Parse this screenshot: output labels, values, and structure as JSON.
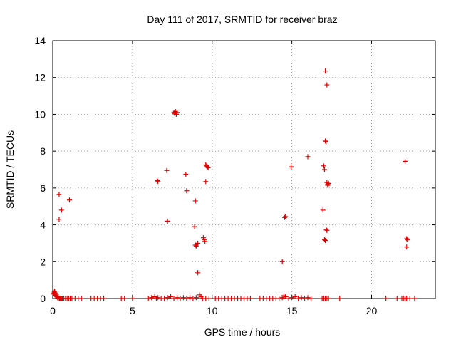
{
  "chart_data": {
    "type": "scatter",
    "title": "Day 111 of 2017, SRMTID for receiver braz",
    "xlabel": "GPS time / hours",
    "ylabel": "SRMTID / TECUs",
    "xlim": [
      0,
      24
    ],
    "ylim": [
      0,
      14
    ],
    "xticks": [
      0,
      5,
      10,
      15,
      20
    ],
    "yticks": [
      0,
      2,
      4,
      6,
      8,
      10,
      12,
      14
    ],
    "grid": true,
    "marker": "+",
    "color": "#e00000",
    "points": [
      [
        0.05,
        0.25
      ],
      [
        0.08,
        0.3
      ],
      [
        0.1,
        0.35
      ],
      [
        0.12,
        0.4
      ],
      [
        0.15,
        0.3
      ],
      [
        0.18,
        0.2
      ],
      [
        0.2,
        0.15
      ],
      [
        0.22,
        0.25
      ],
      [
        0.25,
        0.1
      ],
      [
        0.3,
        0.05
      ],
      [
        0.35,
        0.1
      ],
      [
        0.4,
        0.0
      ],
      [
        0.45,
        0.0
      ],
      [
        0.5,
        0.0
      ],
      [
        0.55,
        0.0
      ],
      [
        0.6,
        0.0
      ],
      [
        0.7,
        0.0
      ],
      [
        0.8,
        0.0
      ],
      [
        0.9,
        0.0
      ],
      [
        1.0,
        0.0
      ],
      [
        1.1,
        0.0
      ],
      [
        1.2,
        0.0
      ],
      [
        1.4,
        0.0
      ],
      [
        1.6,
        0.0
      ],
      [
        1.8,
        0.0
      ],
      [
        2.4,
        0.0
      ],
      [
        2.6,
        0.0
      ],
      [
        2.8,
        0.0
      ],
      [
        3.0,
        0.0
      ],
      [
        3.2,
        0.0
      ],
      [
        4.3,
        0.0
      ],
      [
        4.5,
        0.0
      ],
      [
        5.0,
        0.0
      ],
      [
        0.4,
        5.65
      ],
      [
        0.4,
        4.3
      ],
      [
        0.55,
        4.8
      ],
      [
        1.05,
        5.35
      ],
      [
        6.0,
        0.0
      ],
      [
        6.2,
        0.05
      ],
      [
        6.4,
        0.1
      ],
      [
        6.5,
        0.0
      ],
      [
        6.6,
        0.05
      ],
      [
        6.8,
        0.0
      ],
      [
        7.0,
        0.0
      ],
      [
        7.2,
        0.05
      ],
      [
        7.4,
        0.1
      ],
      [
        7.6,
        0.0
      ],
      [
        7.8,
        0.05
      ],
      [
        8.0,
        0.0
      ],
      [
        8.2,
        0.05
      ],
      [
        8.4,
        0.0
      ],
      [
        8.6,
        0.05
      ],
      [
        8.8,
        0.0
      ],
      [
        9.0,
        0.05
      ],
      [
        9.2,
        0.2
      ],
      [
        9.3,
        0.1
      ],
      [
        9.4,
        0.0
      ],
      [
        9.6,
        0.0
      ],
      [
        9.8,
        0.0
      ],
      [
        6.55,
        6.4
      ],
      [
        6.6,
        6.35
      ],
      [
        7.15,
        6.95
      ],
      [
        7.2,
        4.2
      ],
      [
        7.6,
        10.1
      ],
      [
        7.65,
        10.05
      ],
      [
        7.7,
        10.15
      ],
      [
        7.75,
        10.0
      ],
      [
        7.8,
        10.1
      ],
      [
        8.35,
        6.75
      ],
      [
        8.4,
        5.85
      ],
      [
        8.95,
        5.3
      ],
      [
        8.9,
        3.9
      ],
      [
        8.95,
        2.9
      ],
      [
        9.0,
        2.85
      ],
      [
        9.05,
        2.95
      ],
      [
        9.1,
        3.0
      ],
      [
        9.1,
        1.4
      ],
      [
        9.45,
        3.3
      ],
      [
        9.5,
        3.2
      ],
      [
        9.55,
        3.1
      ],
      [
        9.6,
        7.25
      ],
      [
        9.65,
        7.2
      ],
      [
        9.7,
        7.15
      ],
      [
        9.75,
        7.1
      ],
      [
        9.6,
        6.35
      ],
      [
        10.2,
        0.0
      ],
      [
        10.4,
        0.0
      ],
      [
        10.6,
        0.0
      ],
      [
        10.8,
        0.0
      ],
      [
        11.0,
        0.0
      ],
      [
        11.2,
        0.0
      ],
      [
        11.4,
        0.0
      ],
      [
        11.6,
        0.0
      ],
      [
        11.8,
        0.0
      ],
      [
        12.0,
        0.0
      ],
      [
        12.2,
        0.0
      ],
      [
        12.4,
        0.0
      ],
      [
        13.0,
        0.0
      ],
      [
        13.2,
        0.0
      ],
      [
        13.4,
        0.0
      ],
      [
        13.6,
        0.0
      ],
      [
        13.8,
        0.0
      ],
      [
        14.0,
        0.0
      ],
      [
        14.2,
        0.0
      ],
      [
        14.4,
        0.05
      ],
      [
        14.5,
        0.15
      ],
      [
        14.6,
        0.1
      ],
      [
        14.8,
        0.0
      ],
      [
        15.0,
        0.05
      ],
      [
        15.2,
        0.1
      ],
      [
        15.4,
        0.0
      ],
      [
        15.6,
        0.05
      ],
      [
        15.8,
        0.0
      ],
      [
        16.0,
        0.05
      ],
      [
        16.2,
        0.0
      ],
      [
        14.4,
        2.0
      ],
      [
        14.55,
        4.4
      ],
      [
        14.6,
        4.45
      ],
      [
        14.95,
        7.15
      ],
      [
        16.0,
        7.7
      ],
      [
        16.9,
        0.0
      ],
      [
        17.0,
        0.0
      ],
      [
        17.1,
        0.0
      ],
      [
        17.2,
        0.0
      ],
      [
        17.3,
        0.0
      ],
      [
        16.95,
        4.8
      ],
      [
        17.0,
        7.2
      ],
      [
        17.05,
        7.0
      ],
      [
        17.05,
        3.2
      ],
      [
        17.1,
        3.15
      ],
      [
        17.1,
        12.35
      ],
      [
        17.2,
        11.6
      ],
      [
        17.1,
        8.55
      ],
      [
        17.15,
        8.5
      ],
      [
        17.15,
        3.75
      ],
      [
        17.2,
        3.7
      ],
      [
        17.2,
        6.3
      ],
      [
        17.25,
        6.2
      ],
      [
        17.3,
        6.25
      ],
      [
        17.25,
        6.15
      ],
      [
        18.0,
        0.0
      ],
      [
        20.9,
        0.0
      ],
      [
        21.6,
        0.0
      ],
      [
        21.9,
        0.0
      ],
      [
        22.0,
        0.0
      ],
      [
        22.1,
        0.0
      ],
      [
        22.2,
        0.0
      ],
      [
        22.4,
        0.0
      ],
      [
        22.7,
        0.0
      ],
      [
        22.1,
        7.45
      ],
      [
        22.2,
        3.25
      ],
      [
        22.25,
        3.2
      ],
      [
        22.2,
        2.8
      ]
    ]
  }
}
